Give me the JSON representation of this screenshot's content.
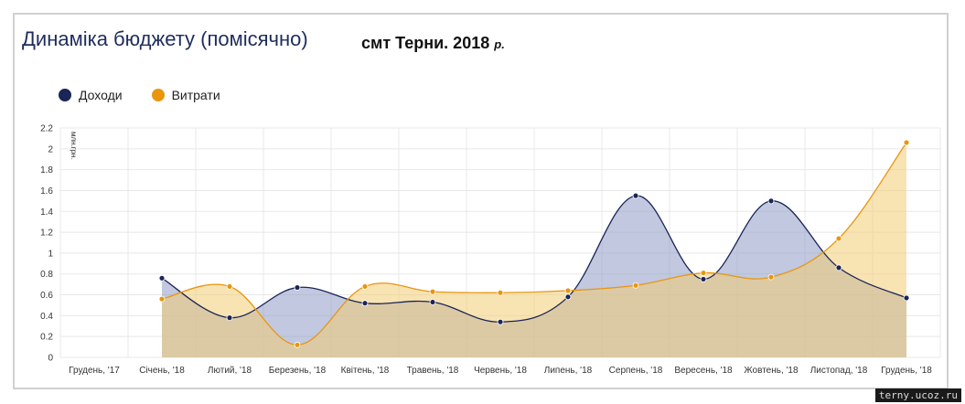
{
  "title": "Динаміка бюджету (помісячно)",
  "subtitle": "смт Терни. 2018",
  "subtitle_suffix": "р.",
  "watermark": "terny.ucoz.ru",
  "colors": {
    "income": "#1b2557",
    "income_fill": "#8e9ac4",
    "expense": "#e8960f",
    "expense_fill": "#f2cc74"
  },
  "chart_data": {
    "type": "area",
    "title": "Динаміка бюджету (помісячно)",
    "ylabel": "млн.грн.",
    "xlabel": "",
    "ylim": [
      0,
      2.2
    ],
    "yticks": [
      "0",
      "0.2",
      "0.4",
      "0.6",
      "0.8",
      "1",
      "1.2",
      "1.4",
      "1.6",
      "1.8",
      "2",
      "2.2"
    ],
    "categories": [
      "Грудень, '17",
      "Січень, '18",
      "Лютий, '18",
      "Березень, '18",
      "Квітень, '18",
      "Травень, '18",
      "Червень, '18",
      "Липень, '18",
      "Серпень, '18",
      "Вересень, '18",
      "Жовтень, '18",
      "Листопад, '18",
      "Грудень, '18"
    ],
    "grid": true,
    "legend_position": "top-left",
    "series": [
      {
        "name": "Доходи",
        "values": [
          null,
          0.76,
          0.38,
          0.67,
          0.52,
          0.53,
          0.34,
          0.58,
          1.55,
          0.75,
          1.5,
          0.86,
          0.57
        ]
      },
      {
        "name": "Витрати",
        "values": [
          null,
          0.56,
          0.68,
          0.12,
          0.68,
          0.63,
          0.62,
          0.64,
          0.69,
          0.81,
          0.77,
          1.14,
          2.06
        ]
      }
    ]
  }
}
